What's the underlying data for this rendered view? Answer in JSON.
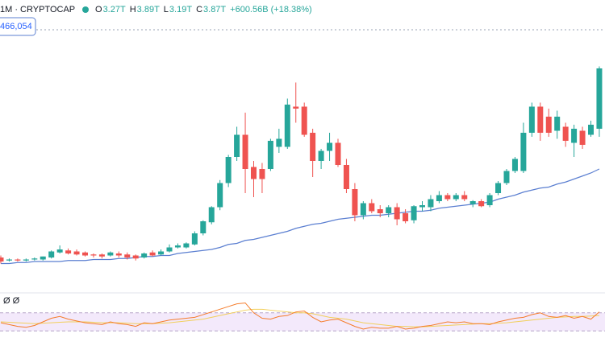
{
  "chart_data": {
    "type": "candlestick",
    "title": "1M · CRYPTOCAP",
    "ohlc": [
      {
        "key": "O",
        "value": "3.27T"
      },
      {
        "key": "H",
        "value": "3.89T"
      },
      {
        "key": "L",
        "value": "3.19T"
      },
      {
        "key": "C",
        "value": "3.87T"
      }
    ],
    "change": "+600.56B (+18.38%)",
    "badge": "466,054",
    "indicator_values": "Ø Ø",
    "up_color": "#26a69a",
    "down_color": "#ef5350",
    "ylim": [
      1.67,
      4.55
    ],
    "open": [
      1.99,
      1.96,
      1.97,
      1.96,
      1.97,
      1.97,
      1.99,
      2.04,
      2.06,
      2.05,
      2.04,
      2.02,
      2.02,
      2.01,
      2.03,
      2.02,
      2.01,
      1.99,
      2.04,
      2.02,
      2.05,
      2.09,
      2.09,
      2.12,
      2.23,
      2.34,
      2.49,
      2.73,
      2.99,
      3.21,
      2.89,
      2.87,
      2.87,
      3.09,
      3.09,
      3.49,
      3.49,
      3.23,
      2.95,
      3.05,
      3.13,
      2.91,
      2.67,
      2.41,
      2.53,
      2.47,
      2.43,
      2.49,
      2.43,
      2.36,
      2.49,
      2.49,
      2.55,
      2.61,
      2.57,
      2.61,
      2.52,
      2.55,
      2.51,
      2.63,
      2.73,
      2.85,
      2.85,
      3.23,
      3.49,
      3.39,
      3.25,
      3.29,
      3.13,
      3.25,
      3.21,
      3.27
    ],
    "high": [
      2.01,
      1.98,
      1.98,
      1.98,
      1.99,
      2.0,
      2.06,
      2.11,
      2.08,
      2.07,
      2.05,
      2.03,
      2.03,
      2.05,
      2.05,
      2.04,
      2.02,
      2.04,
      2.06,
      2.07,
      2.12,
      2.13,
      2.14,
      2.25,
      2.36,
      2.5,
      2.76,
      3.01,
      3.29,
      3.43,
      2.95,
      2.93,
      3.17,
      3.27,
      3.57,
      3.73,
      3.53,
      3.27,
      3.07,
      3.23,
      3.17,
      2.97,
      2.73,
      2.55,
      2.57,
      2.51,
      2.51,
      2.53,
      2.47,
      2.51,
      2.55,
      2.61,
      2.65,
      2.63,
      2.63,
      2.65,
      2.56,
      2.57,
      2.63,
      2.75,
      2.87,
      2.99,
      3.33,
      3.53,
      3.53,
      3.47,
      3.45,
      3.33,
      3.31,
      3.29,
      3.35,
      3.89
    ],
    "low": [
      1.93,
      1.95,
      1.95,
      1.95,
      1.96,
      1.96,
      1.98,
      2.03,
      2.02,
      2.01,
      2.0,
      1.99,
      1.98,
      2.0,
      1.99,
      1.97,
      1.96,
      1.98,
      2.0,
      2.01,
      2.04,
      2.08,
      2.08,
      2.11,
      2.21,
      2.32,
      2.46,
      2.69,
      2.95,
      2.63,
      2.59,
      2.63,
      2.85,
      3.03,
      3.07,
      3.33,
      3.19,
      2.79,
      2.87,
      2.95,
      2.89,
      2.63,
      2.35,
      2.37,
      2.43,
      2.39,
      2.39,
      2.31,
      2.33,
      2.33,
      2.45,
      2.45,
      2.53,
      2.55,
      2.55,
      2.55,
      2.49,
      2.49,
      2.49,
      2.61,
      2.71,
      2.83,
      2.83,
      3.19,
      3.15,
      3.19,
      3.17,
      3.09,
      2.99,
      3.07,
      3.19,
      3.19
    ],
    "close": [
      1.95,
      1.97,
      1.96,
      1.97,
      1.98,
      2.0,
      2.05,
      2.07,
      2.03,
      2.02,
      2.01,
      2.01,
      2.0,
      2.04,
      2.01,
      1.99,
      1.98,
      2.03,
      2.01,
      2.05,
      2.09,
      2.11,
      2.13,
      2.23,
      2.35,
      2.49,
      2.73,
      2.99,
      3.21,
      2.87,
      2.77,
      2.77,
      3.15,
      3.17,
      3.51,
      3.47,
      3.21,
      2.95,
      3.05,
      3.13,
      2.91,
      2.67,
      2.41,
      2.53,
      2.45,
      2.43,
      2.49,
      2.37,
      2.35,
      2.5,
      2.51,
      2.57,
      2.61,
      2.57,
      2.61,
      2.57,
      2.55,
      2.5,
      2.61,
      2.73,
      2.85,
      2.97,
      3.23,
      3.49,
      3.23,
      3.23,
      3.39,
      3.15,
      3.27,
      3.11,
      3.31,
      3.87
    ],
    "ma": {
      "color": "#5b7fd1",
      "values": [
        1.93,
        1.93,
        1.94,
        1.94,
        1.95,
        1.95,
        1.95,
        1.95,
        1.96,
        1.96,
        1.96,
        1.97,
        1.97,
        1.97,
        1.98,
        1.98,
        1.99,
        2.0,
        2.0,
        2.01,
        2.01,
        2.03,
        2.04,
        2.05,
        2.06,
        2.07,
        2.09,
        2.12,
        2.13,
        2.16,
        2.17,
        2.19,
        2.21,
        2.23,
        2.25,
        2.28,
        2.3,
        2.32,
        2.33,
        2.35,
        2.37,
        2.38,
        2.39,
        2.4,
        2.41,
        2.41,
        2.42,
        2.43,
        2.44,
        2.45,
        2.45,
        2.46,
        2.48,
        2.49,
        2.5,
        2.51,
        2.52,
        2.53,
        2.54,
        2.57,
        2.59,
        2.61,
        2.64,
        2.66,
        2.68,
        2.69,
        2.72,
        2.74,
        2.77,
        2.8,
        2.83,
        2.87
      ]
    },
    "rsi_ylim": [
      0,
      100
    ],
    "rsi_band": [
      30,
      70
    ],
    "rsi": {
      "color": "#f57c2b",
      "values": [
        48,
        44,
        40,
        38,
        42,
        50,
        58,
        62,
        56,
        52,
        48,
        46,
        44,
        50,
        46,
        44,
        40,
        48,
        46,
        50,
        54,
        56,
        58,
        60,
        66,
        72,
        78,
        84,
        90,
        92,
        70,
        58,
        56,
        62,
        64,
        72,
        74,
        60,
        50,
        54,
        56,
        48,
        40,
        34,
        38,
        36,
        36,
        40,
        34,
        36,
        40,
        42,
        46,
        50,
        48,
        50,
        46,
        46,
        44,
        50,
        54,
        58,
        60,
        66,
        70,
        62,
        60,
        64,
        58,
        62,
        56,
        72
      ]
    },
    "rsi_ma": {
      "color": "#f2cf5b",
      "values": [
        50,
        49,
        48,
        47,
        46,
        47,
        48,
        49,
        50,
        50,
        50,
        49,
        48,
        48,
        48,
        47,
        46,
        46,
        46,
        47,
        48,
        50,
        52,
        54,
        56,
        60,
        64,
        68,
        72,
        76,
        78,
        78,
        76,
        74,
        72,
        70,
        70,
        68,
        64,
        60,
        58,
        56,
        52,
        48,
        46,
        44,
        42,
        40,
        40,
        39,
        39,
        40,
        41,
        42,
        43,
        44,
        45,
        46,
        46,
        47,
        48,
        50,
        52,
        54,
        56,
        58,
        60,
        61,
        62,
        62,
        63,
        64
      ]
    }
  }
}
